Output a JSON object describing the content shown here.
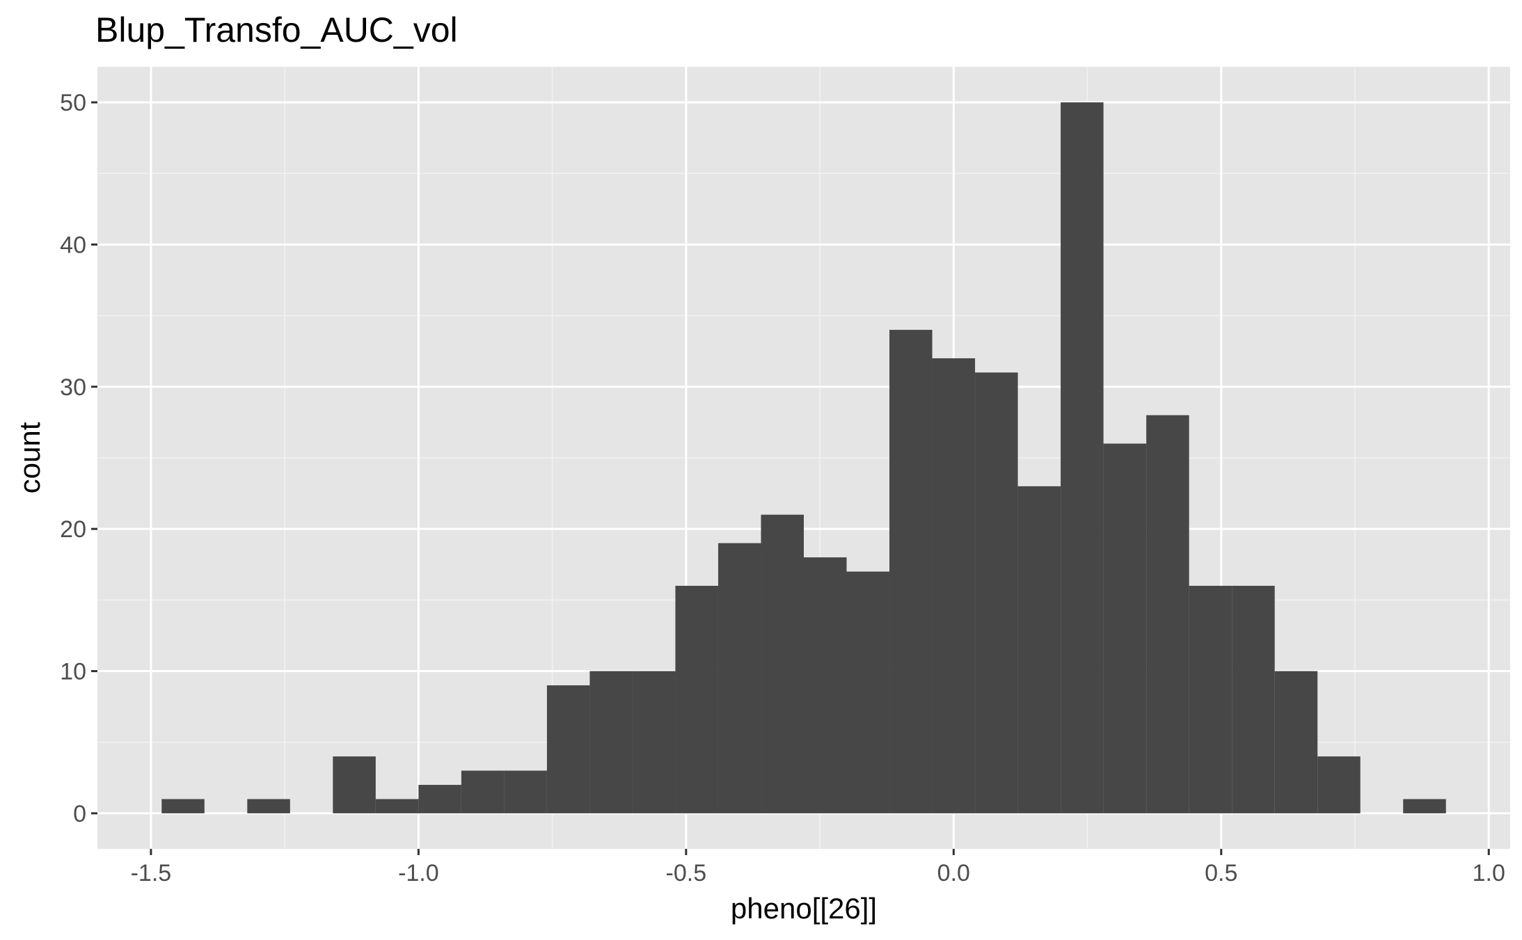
{
  "chart_data": {
    "type": "bar",
    "title": "Blup_Transfo_AUC_vol",
    "xlabel": "pheno[[26]]",
    "ylabel": "count",
    "xlim": [
      -1.6,
      1.04
    ],
    "ylim": [
      -2.5,
      52.5
    ],
    "x_ticks": [
      -1.5,
      -1.0,
      -0.5,
      0.0,
      0.5,
      1.0
    ],
    "x_tick_labels": [
      "-1.5",
      "-1.0",
      "-0.5",
      "0.0",
      "0.5",
      "1.0"
    ],
    "y_ticks": [
      0,
      10,
      20,
      30,
      40,
      50
    ],
    "y_tick_labels": [
      "0",
      "10",
      "20",
      "30",
      "40",
      "50"
    ],
    "bin_start": -1.48,
    "bin_width": 0.08,
    "counts": [
      1,
      0,
      1,
      0,
      4,
      1,
      2,
      3,
      3,
      9,
      10,
      10,
      16,
      19,
      21,
      18,
      17,
      34,
      32,
      31,
      23,
      50,
      26,
      28,
      16,
      16,
      10,
      4,
      0,
      1
    ],
    "bar_color": "#474747",
    "panel_color": "#e5e5e5",
    "grid": true
  }
}
